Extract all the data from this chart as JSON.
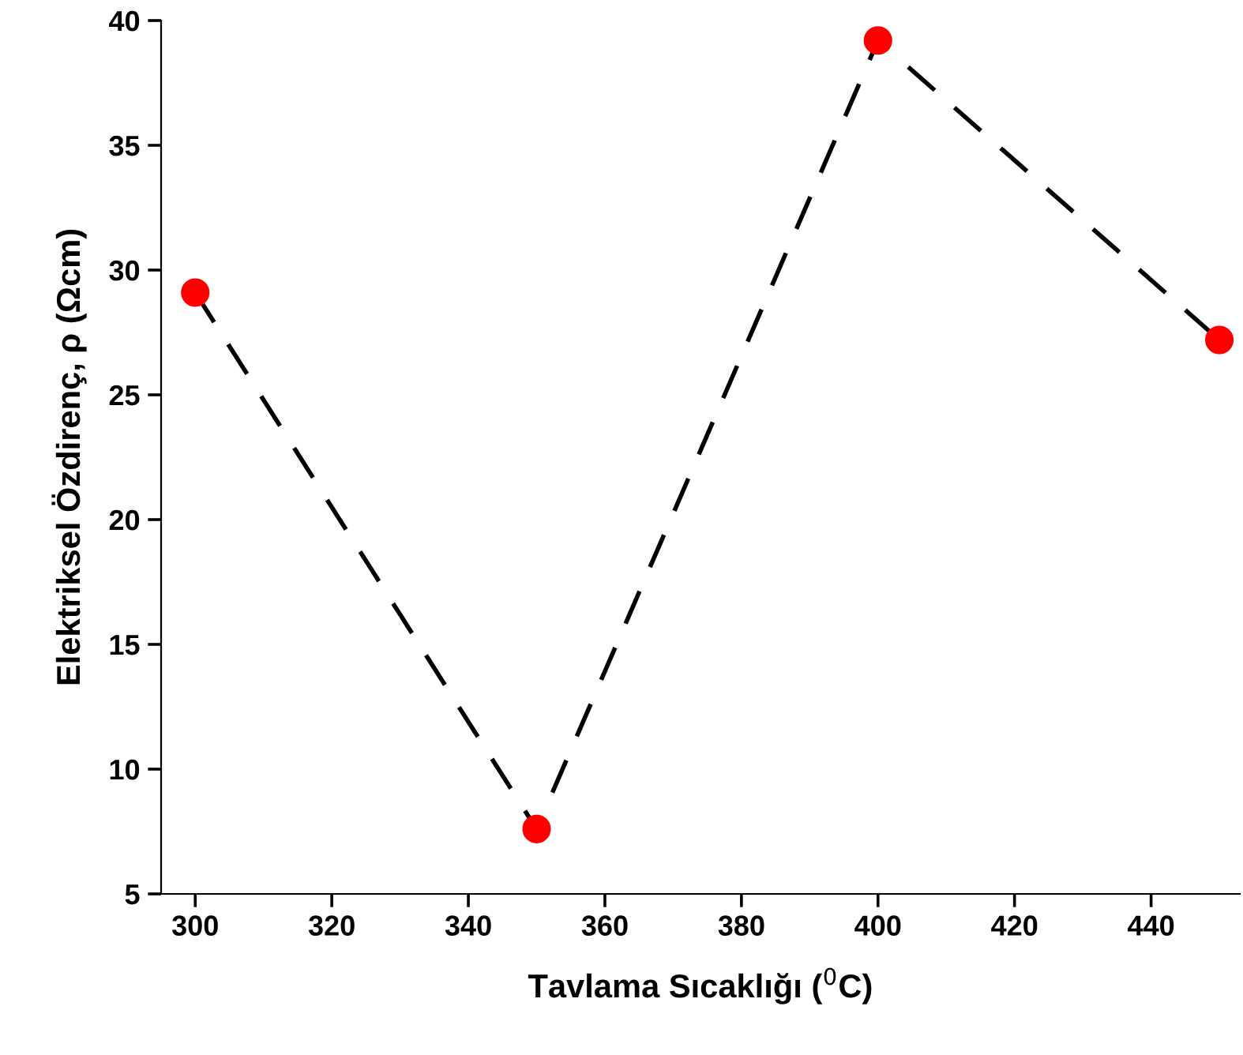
{
  "chart_data": {
    "type": "line",
    "xlabel": "Tavlama Sıcaklığı ($^{0}$C)",
    "ylabel": "Elektriksel Özdirenç, ρ (Ωcm)",
    "x": [
      300,
      350,
      400,
      450
    ],
    "series": [
      {
        "color": "#ff0000",
        "values": [
          29.1,
          7.6,
          39.2,
          27.2
        ]
      }
    ],
    "marker": "circle",
    "line_style": "dashed",
    "grid": false,
    "legend": false,
    "xlim": [
      295,
      453
    ],
    "xticks": [
      300,
      320,
      340,
      360,
      380,
      400,
      420,
      440
    ],
    "ylim": [
      5,
      40
    ],
    "yticks": [
      5,
      10,
      15,
      20,
      25,
      30,
      35,
      40
    ]
  }
}
